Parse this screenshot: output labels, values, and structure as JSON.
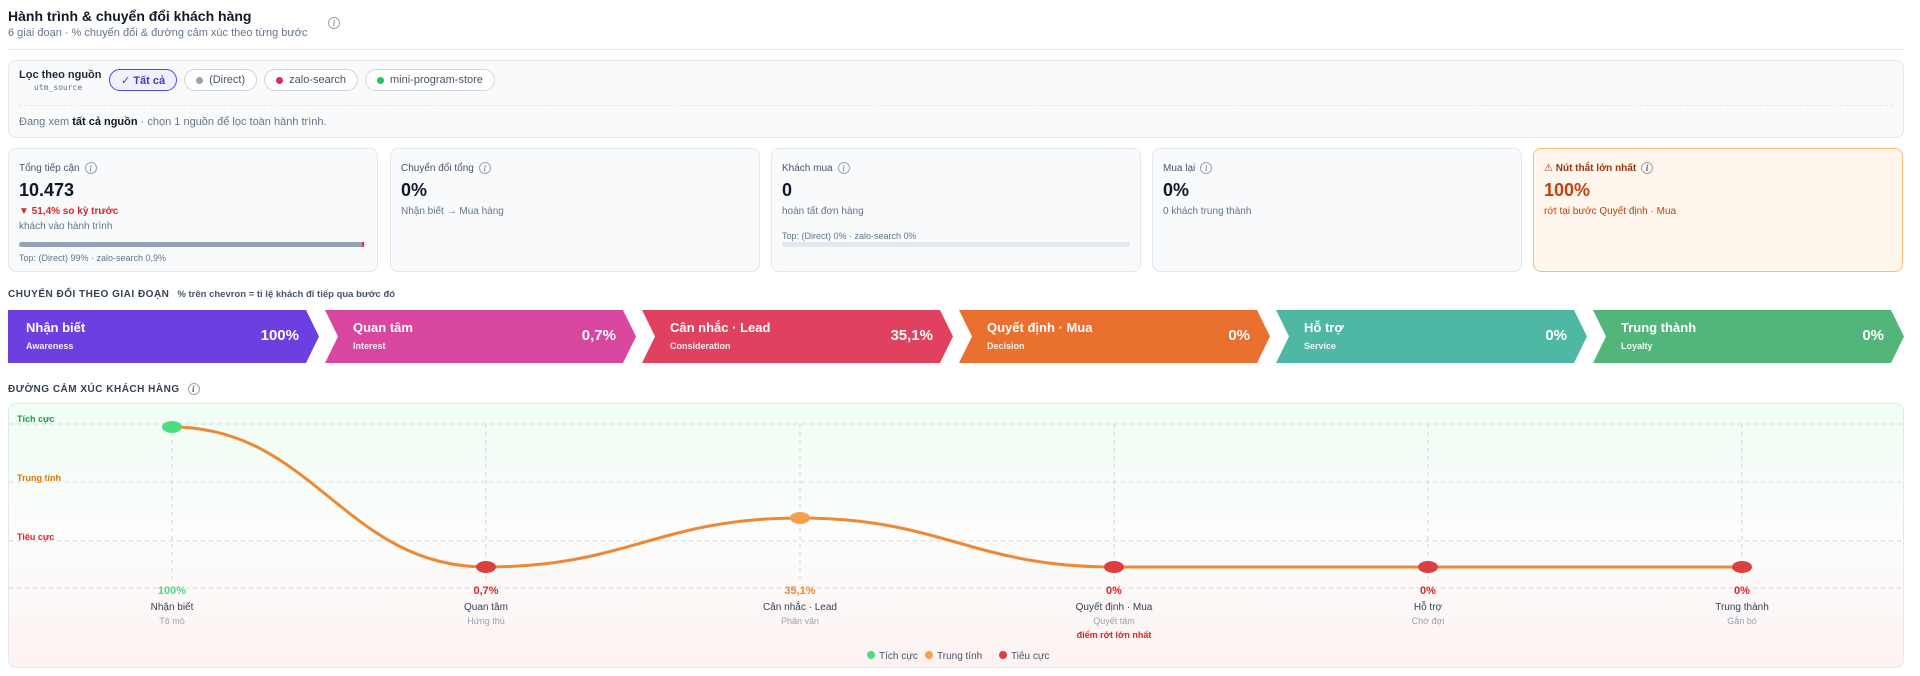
{
  "header": {
    "title": "Hành trình & chuyển đổi khách hàng",
    "subtitle": "6 giai đoạn · % chuyển đổi & đường cảm xúc theo từng bước",
    "info": "i"
  },
  "filter": {
    "label": "Lọc theo nguồn",
    "sublabel": "utm_source",
    "chips": [
      {
        "label": "✓ Tất cả",
        "color": "",
        "active": true
      },
      {
        "label": "(Direct)",
        "color": "#94a3b8",
        "active": false
      },
      {
        "label": "zalo-search",
        "color": "#db2777",
        "active": false
      },
      {
        "label": "mini-program-store",
        "color": "#22c55e",
        "active": false
      }
    ],
    "note_prefix": "Đang xem",
    "note_bold": "tất cả nguồn",
    "note_suffix": "· chọn 1 nguồn để lọc toàn hành trình."
  },
  "kpis": [
    {
      "label": "Tổng tiếp cận",
      "value": "10.473",
      "trend": "▼ 51,4% so kỳ trước",
      "desc": "khách vào hành trình",
      "bar_fill": 0.99,
      "foot": "Top: (Direct) 99% · zalo-search 0,9%"
    },
    {
      "label": "Chuyển đổi tổng",
      "value": "0%",
      "desc": "Nhận biết → Mua hàng"
    },
    {
      "label": "Khách mua",
      "value": "0",
      "desc": "hoàn tất đơn hàng",
      "bar_fill": 0,
      "foot": "Top: (Direct) 0% · zalo-search 0%"
    },
    {
      "label": "Mua lại",
      "value": "0%",
      "desc": "0 khách trung thành"
    },
    {
      "label": "⚠ Nút thắt lớn nhất",
      "value": "100%",
      "desc": "rớt tại bước Quyết định · Mua",
      "warn": true
    }
  ],
  "stages_section": {
    "title": "CHUYỂN ĐỔI THEO GIAI ĐOẠN",
    "note": "% trên chevron = tỉ lệ khách đi tiếp qua bước đó"
  },
  "stages": [
    {
      "name": "Nhận biết",
      "en": "Awareness",
      "pct": "100%",
      "color": "#6d3fe0"
    },
    {
      "name": "Quan tâm",
      "en": "Interest",
      "pct": "0,7%",
      "color": "#d946a0"
    },
    {
      "name": "Cân nhắc · Lead",
      "en": "Consideration",
      "pct": "35,1%",
      "color": "#e0415f"
    },
    {
      "name": "Quyết định · Mua",
      "en": "Decision",
      "pct": "0%",
      "color": "#ea7030"
    },
    {
      "name": "Hỗ trợ",
      "en": "Service",
      "pct": "0%",
      "color": "#4fb8a4"
    },
    {
      "name": "Trung thành",
      "en": "Loyalty",
      "pct": "0%",
      "color": "#52b67a"
    }
  ],
  "emotion_section": {
    "title": "ĐƯỜNG CẢM XÚC KHÁCH HÀNG"
  },
  "chart_data": {
    "type": "line",
    "y_levels": [
      "Tích cực",
      "Trung tính",
      "Tiêu cực"
    ],
    "level_colors": {
      "Tích cực": "#16a34a",
      "Trung tính": "#d97706",
      "Tiêu cực": "#dc2626"
    },
    "points": [
      {
        "stage": "Nhận biết",
        "emotion": "Tô mò",
        "pct": "100%",
        "level": 1.0,
        "sentiment": "Tích cực"
      },
      {
        "stage": "Quan tâm",
        "emotion": "Hứng thú",
        "pct": "0,7%",
        "level": 0.0,
        "sentiment": "Tiêu cực"
      },
      {
        "stage": "Cân nhắc · Lead",
        "emotion": "Phân vân",
        "pct": "35,1%",
        "level": 0.35,
        "sentiment": "Trung tính"
      },
      {
        "stage": "Quyết định · Mua",
        "emotion": "Quyết tâm",
        "pct": "0%",
        "level": 0.0,
        "sentiment": "Tiêu cực",
        "note": "điểm rớt lớn nhất"
      },
      {
        "stage": "Hỗ trợ",
        "emotion": "Chờ đợi",
        "pct": "0%",
        "level": 0.0,
        "sentiment": "Tiêu cực"
      },
      {
        "stage": "Trung thành",
        "emotion": "Gắn bó",
        "pct": "0%",
        "level": 0.0,
        "sentiment": "Tiêu cực"
      }
    ],
    "line_color": "#ed8936",
    "legend": [
      "Tích cực",
      "Trung tính",
      "Tiêu cực"
    ],
    "legend_position": "bottom-center",
    "grid": true
  }
}
